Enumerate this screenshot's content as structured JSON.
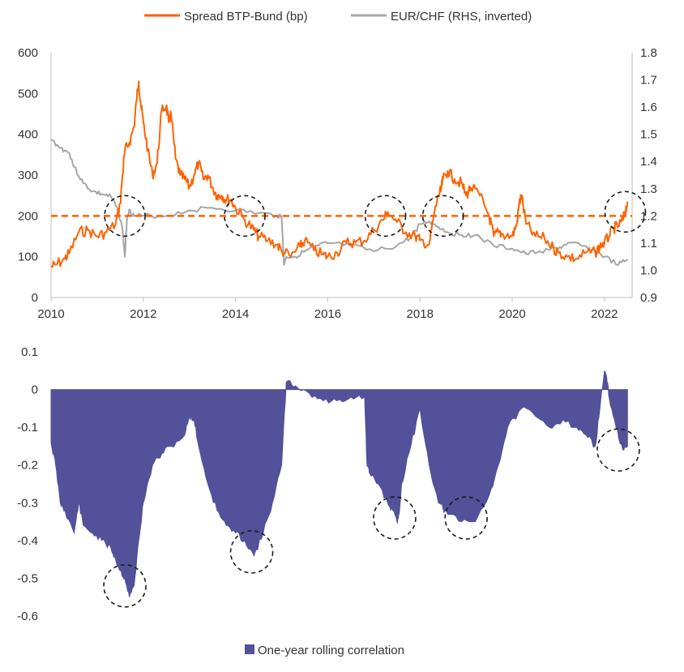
{
  "chart_data": [
    {
      "type": "line",
      "legend": [
        "Spread BTP-Bund (bp)",
        "EUR/CHF (RHS, inverted)"
      ],
      "colors": {
        "spread": "#FF6200",
        "eurchf": "#A6A6A6",
        "threshold": "#FF6200"
      },
      "x_range": [
        2010,
        2022.6
      ],
      "x_ticks": [
        "2010",
        "2012",
        "2014",
        "2016",
        "2018",
        "2020",
        "2022"
      ],
      "y_left_range": [
        0,
        600
      ],
      "y_left_ticks": [
        "0",
        "100",
        "200",
        "300",
        "400",
        "500",
        "600"
      ],
      "y_right_range": [
        0.9,
        1.8
      ],
      "y_right_ticks": [
        "0.9",
        "1.0",
        "1.1",
        "1.2",
        "1.3",
        "1.4",
        "1.5",
        "1.6",
        "1.7",
        "1.8"
      ],
      "threshold_bp": 200,
      "series": [
        {
          "name": "Spread BTP-Bund (bp)",
          "x": [
            2010.0,
            2010.1,
            2010.3,
            2010.4,
            2010.6,
            2010.8,
            2011.0,
            2011.2,
            2011.4,
            2011.5,
            2011.55,
            2011.6,
            2011.7,
            2011.8,
            2011.85,
            2011.9,
            2011.95,
            2012.0,
            2012.1,
            2012.2,
            2012.3,
            2012.4,
            2012.5,
            2012.55,
            2012.6,
            2012.7,
            2012.8,
            2012.9,
            2013.0,
            2013.1,
            2013.2,
            2013.3,
            2013.4,
            2013.5,
            2013.6,
            2013.7,
            2013.8,
            2013.9,
            2014.0,
            2014.2,
            2014.4,
            2014.5,
            2014.7,
            2014.9,
            2015.0,
            2015.2,
            2015.4,
            2015.5,
            2015.7,
            2015.9,
            2016.0,
            2016.2,
            2016.4,
            2016.6,
            2016.8,
            2017.0,
            2017.2,
            2017.3,
            2017.5,
            2017.7,
            2017.9,
            2018.0,
            2018.2,
            2018.3,
            2018.4,
            2018.45,
            2018.5,
            2018.6,
            2018.75,
            2018.9,
            2019.0,
            2019.1,
            2019.3,
            2019.5,
            2019.6,
            2019.7,
            2019.8,
            2020.0,
            2020.1,
            2020.15,
            2020.2,
            2020.3,
            2020.5,
            2020.7,
            2020.9,
            2021.0,
            2021.2,
            2021.4,
            2021.6,
            2021.8,
            2021.9,
            2022.0,
            2022.1,
            2022.2,
            2022.3,
            2022.4,
            2022.45,
            2022.5
          ],
          "values": [
            75,
            80,
            95,
            110,
            160,
            165,
            150,
            160,
            180,
            230,
            300,
            360,
            380,
            420,
            480,
            530,
            470,
            430,
            360,
            300,
            330,
            460,
            470,
            430,
            450,
            340,
            300,
            290,
            270,
            300,
            330,
            290,
            300,
            270,
            250,
            250,
            240,
            240,
            220,
            190,
            165,
            150,
            140,
            130,
            115,
            100,
            125,
            140,
            115,
            105,
            100,
            110,
            135,
            135,
            140,
            165,
            190,
            210,
            185,
            160,
            150,
            140,
            130,
            200,
            250,
            260,
            290,
            310,
            290,
            280,
            250,
            270,
            250,
            200,
            150,
            160,
            155,
            150,
            180,
            230,
            250,
            180,
            150,
            145,
            120,
            110,
            100,
            95,
            110,
            110,
            125,
            135,
            150,
            170,
            175,
            190,
            210,
            235
          ]
        },
        {
          "name": "EUR/CHF (RHS, inverted)",
          "x": [
            2010.0,
            2010.2,
            2010.4,
            2010.5,
            2010.7,
            2010.9,
            2011.1,
            2011.3,
            2011.45,
            2011.55,
            2011.6,
            2011.65,
            2011.7,
            2011.8,
            2012.0,
            2012.5,
            2013.0,
            2013.5,
            2014.0,
            2014.5,
            2014.9,
            2015.0,
            2015.05,
            2015.1,
            2015.3,
            2015.5,
            2015.8,
            2016.0,
            2016.5,
            2017.0,
            2017.5,
            2017.8,
            2018.0,
            2018.2,
            2018.4,
            2018.6,
            2018.9,
            2019.2,
            2019.6,
            2020.0,
            2020.3,
            2020.6,
            2021.0,
            2021.2,
            2021.5,
            2021.8,
            2022.0,
            2022.3,
            2022.5
          ],
          "values": [
            1.48,
            1.45,
            1.43,
            1.38,
            1.32,
            1.29,
            1.28,
            1.27,
            1.22,
            1.15,
            1.05,
            1.2,
            1.22,
            1.2,
            1.2,
            1.2,
            1.22,
            1.23,
            1.22,
            1.21,
            1.2,
            1.2,
            1.02,
            1.05,
            1.05,
            1.07,
            1.09,
            1.1,
            1.09,
            1.07,
            1.09,
            1.12,
            1.17,
            1.18,
            1.16,
            1.14,
            1.13,
            1.13,
            1.09,
            1.08,
            1.06,
            1.07,
            1.08,
            1.1,
            1.09,
            1.07,
            1.05,
            1.02,
            1.04
          ]
        }
      ],
      "annotations": [
        {
          "x": 2011.6,
          "y": 200
        },
        {
          "x": 2014.2,
          "y": 200
        },
        {
          "x": 2017.25,
          "y": 200
        },
        {
          "x": 2018.5,
          "y": 200
        },
        {
          "x": 2022.45,
          "y": 210
        }
      ]
    },
    {
      "type": "area",
      "legend": [
        "One-year rolling correlation"
      ],
      "color": "#525199",
      "x_range": [
        2010,
        2022.6
      ],
      "y_range": [
        -0.6,
        0.1
      ],
      "y_ticks": [
        "0.1",
        "0",
        "-0.1",
        "-0.2",
        "-0.3",
        "-0.4",
        "-0.5",
        "-0.6"
      ],
      "series": [
        {
          "name": "One-year rolling correlation",
          "x": [
            2010.0,
            2010.1,
            2010.2,
            2010.3,
            2010.5,
            2010.6,
            2010.7,
            2010.9,
            2011.1,
            2011.3,
            2011.4,
            2011.5,
            2011.6,
            2011.7,
            2011.8,
            2011.9,
            2012.0,
            2012.2,
            2012.4,
            2012.6,
            2012.9,
            2013.0,
            2013.1,
            2013.2,
            2013.4,
            2013.6,
            2013.8,
            2014.0,
            2014.2,
            2014.4,
            2014.6,
            2014.8,
            2015.0,
            2015.1,
            2015.3,
            2015.6,
            2015.9,
            2016.2,
            2016.5,
            2016.8,
            2016.85,
            2016.9,
            2017.1,
            2017.3,
            2017.4,
            2017.5,
            2017.55,
            2017.6,
            2017.8,
            2018.0,
            2018.2,
            2018.4,
            2018.6,
            2018.9,
            2019.2,
            2019.5,
            2019.7,
            2019.9,
            2020.2,
            2020.5,
            2020.8,
            2021.1,
            2021.4,
            2021.6,
            2021.8,
            2021.9,
            2022.0,
            2022.05,
            2022.1,
            2022.25,
            2022.4,
            2022.5
          ],
          "values": [
            -0.14,
            -0.2,
            -0.3,
            -0.32,
            -0.38,
            -0.3,
            -0.36,
            -0.38,
            -0.4,
            -0.42,
            -0.45,
            -0.48,
            -0.5,
            -0.55,
            -0.52,
            -0.4,
            -0.3,
            -0.2,
            -0.17,
            -0.15,
            -0.12,
            -0.07,
            -0.08,
            -0.15,
            -0.25,
            -0.32,
            -0.36,
            -0.38,
            -0.4,
            -0.44,
            -0.38,
            -0.3,
            -0.2,
            0.02,
            0.01,
            -0.01,
            -0.03,
            -0.03,
            -0.02,
            -0.02,
            -0.2,
            -0.22,
            -0.25,
            -0.3,
            -0.32,
            -0.35,
            -0.33,
            -0.25,
            -0.15,
            -0.05,
            -0.2,
            -0.3,
            -0.33,
            -0.35,
            -0.35,
            -0.28,
            -0.2,
            -0.1,
            -0.05,
            -0.07,
            -0.1,
            -0.08,
            -0.1,
            -0.12,
            -0.15,
            -0.05,
            0.05,
            0.03,
            -0.02,
            -0.1,
            -0.16,
            -0.15
          ],
          "ylabel": ""
        }
      ],
      "annotations": [
        {
          "x": 2011.6,
          "y": -0.52
        },
        {
          "x": 2014.35,
          "y": -0.43
        },
        {
          "x": 2017.45,
          "y": -0.34
        },
        {
          "x": 2019.0,
          "y": -0.34
        },
        {
          "x": 2022.3,
          "y": -0.16
        }
      ]
    }
  ]
}
